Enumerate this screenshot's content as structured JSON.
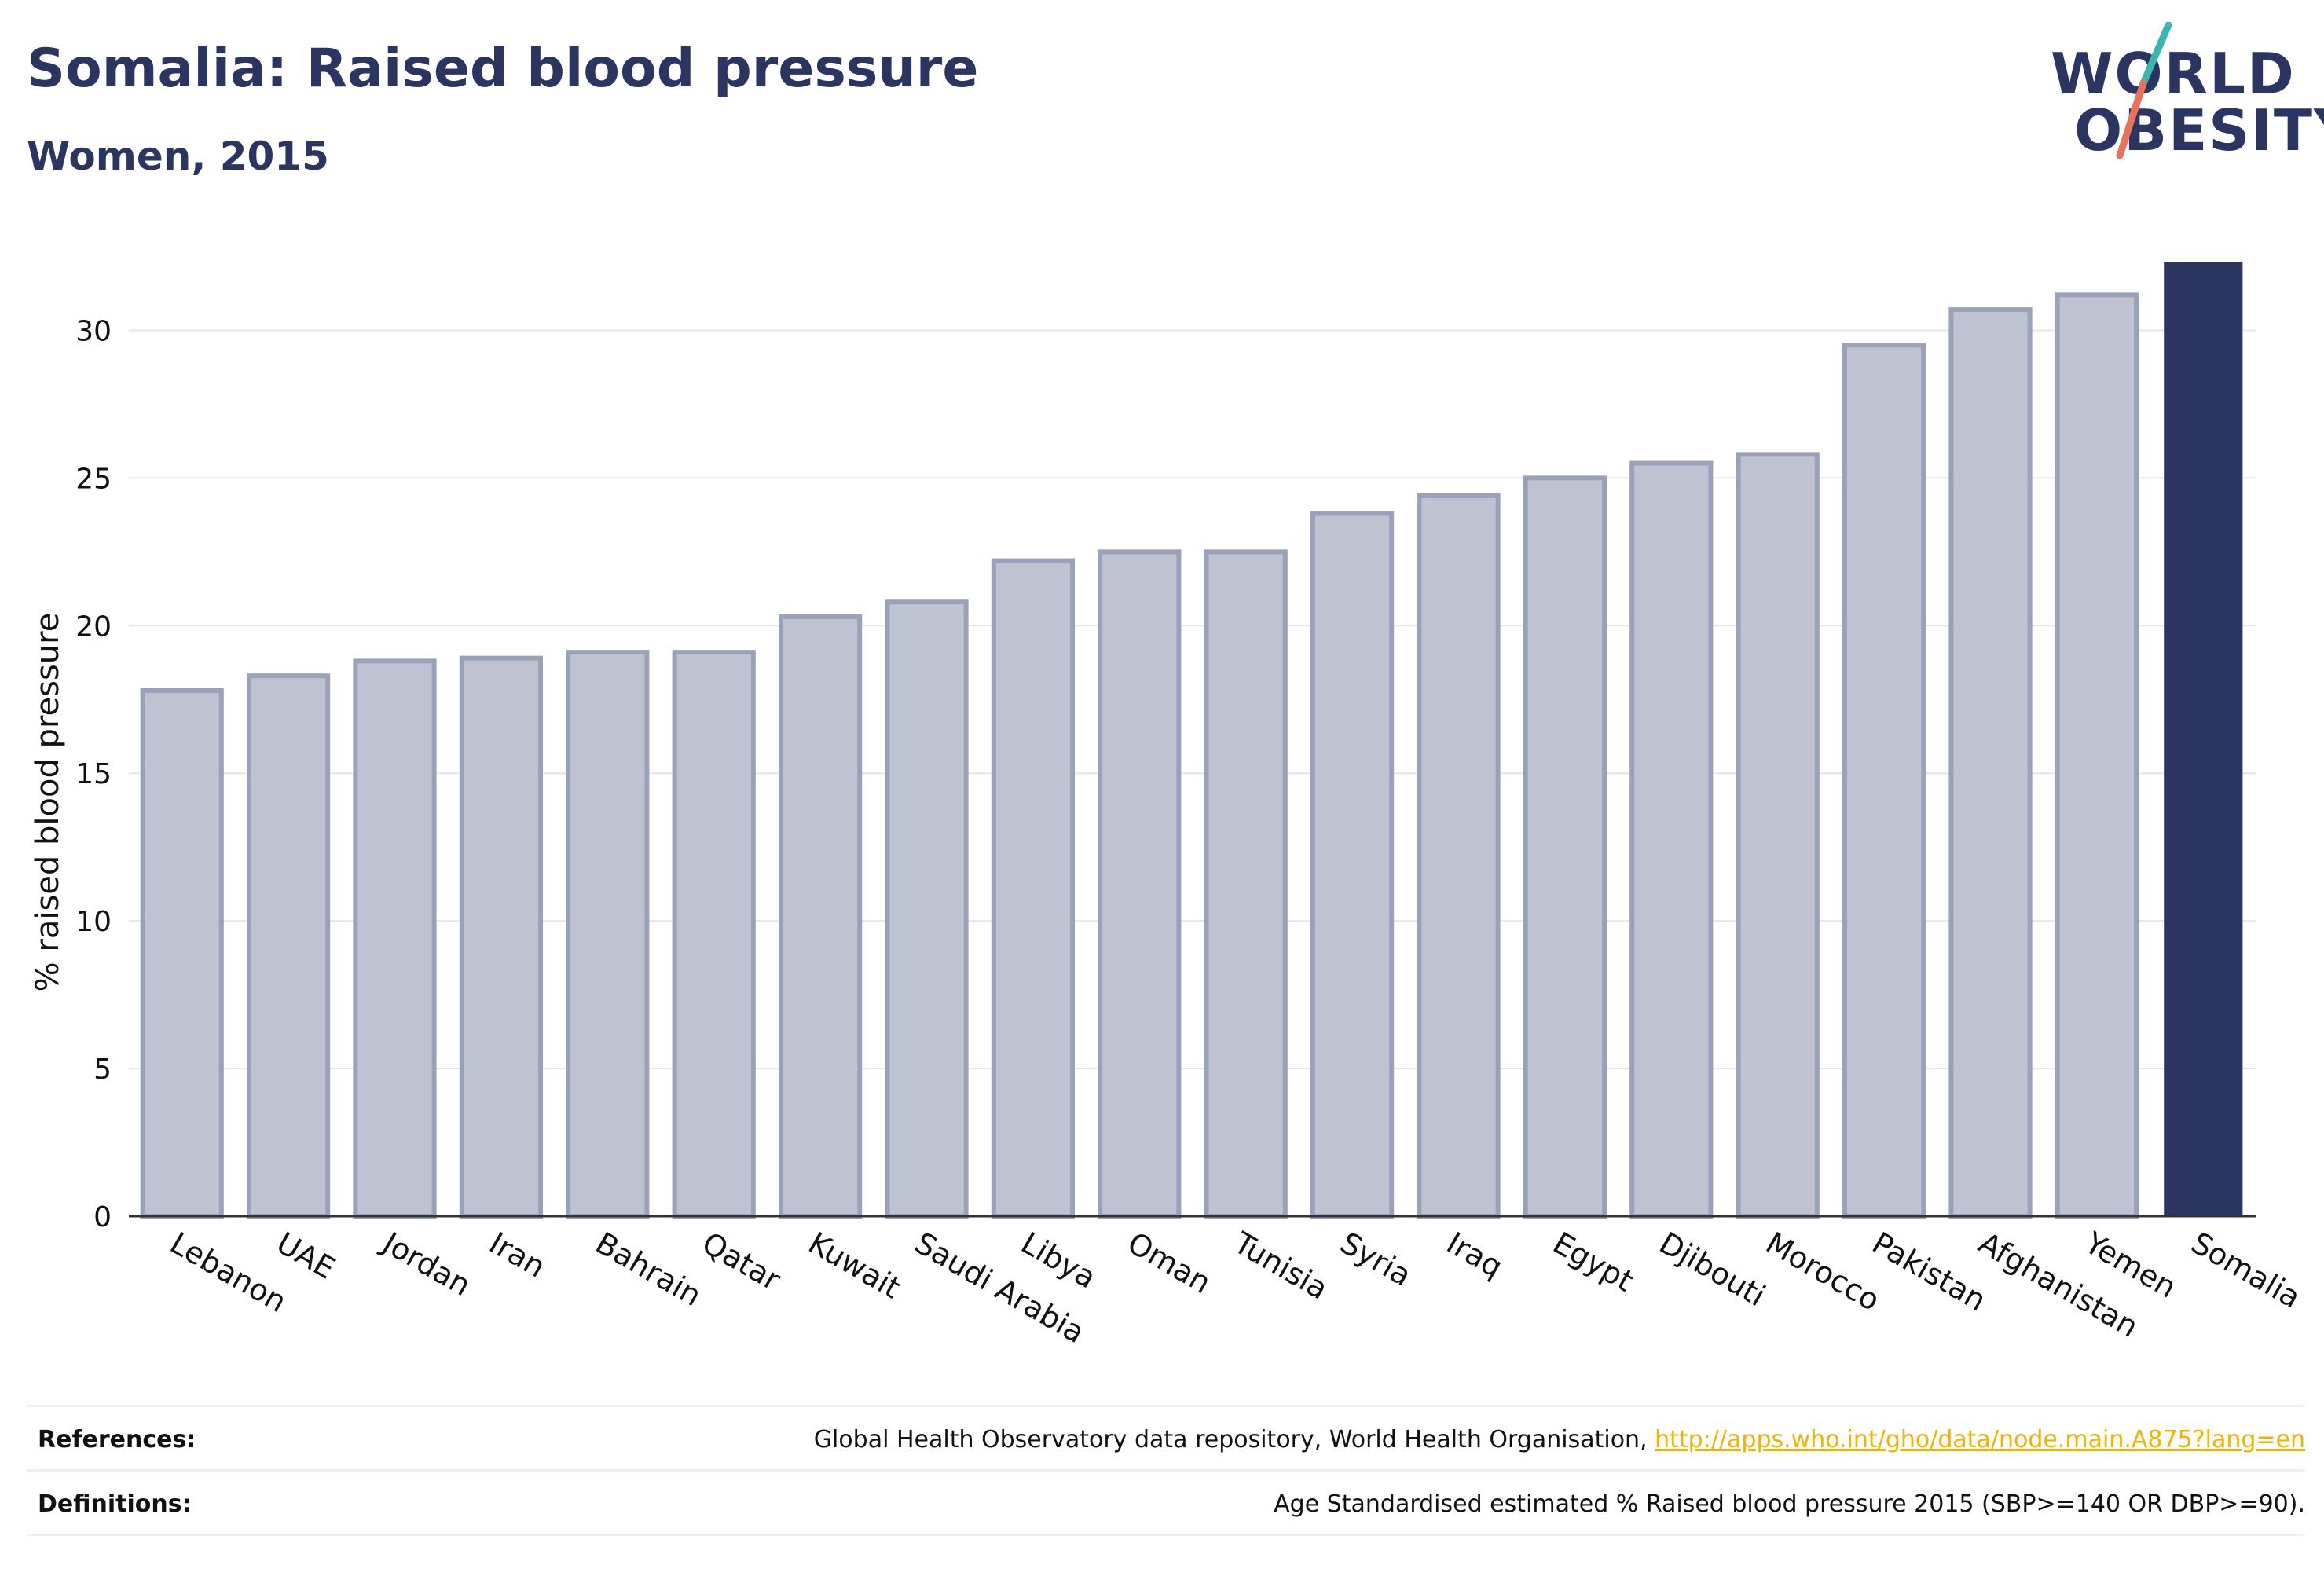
{
  "header": {
    "title": "Somalia: Raised blood pressure",
    "subtitle": "Women, 2015"
  },
  "logo": {
    "line1": "WORLD",
    "line2": "OBESITY",
    "slash_colors": [
      "#3ab5b0",
      "#e8735a"
    ]
  },
  "colors": {
    "highlight": "#2a3561",
    "bar_fill": "#bfc3d1",
    "bar_stroke": "#9aa1ba",
    "grid": "#e6e6e6"
  },
  "chart_data": {
    "type": "bar",
    "categories": [
      "Lebanon",
      "UAE",
      "Jordan",
      "Iran",
      "Bahrain",
      "Qatar",
      "Kuwait",
      "Saudi Arabia",
      "Libya",
      "Oman",
      "Tunisia",
      "Syria",
      "Iraq",
      "Egypt",
      "Djibouti",
      "Morocco",
      "Pakistan",
      "Afghanistan",
      "Yemen",
      "Somalia"
    ],
    "values": [
      17.8,
      18.3,
      18.8,
      18.9,
      19.1,
      19.1,
      20.3,
      20.8,
      22.2,
      22.5,
      22.5,
      23.8,
      24.4,
      25.0,
      25.5,
      25.8,
      29.5,
      30.7,
      31.2,
      32.3
    ],
    "highlight": "Somalia",
    "ylabel": "% raised blood pressure",
    "xlabel": "",
    "ylim": [
      0,
      32.3
    ],
    "yticks": [
      0,
      5,
      10,
      15,
      20,
      25,
      30
    ],
    "grid": true
  },
  "footer": {
    "references_label": "References:",
    "references_text": "Global Health Observatory data repository, World Health Organisation, ",
    "references_link": "http://apps.who.int/gho/data/node.main.A875?lang=en",
    "definitions_label": "Definitions:",
    "definitions_text": "Age Standardised estimated % Raised blood pressure 2015 (SBP>=140 OR DBP>=90)."
  }
}
